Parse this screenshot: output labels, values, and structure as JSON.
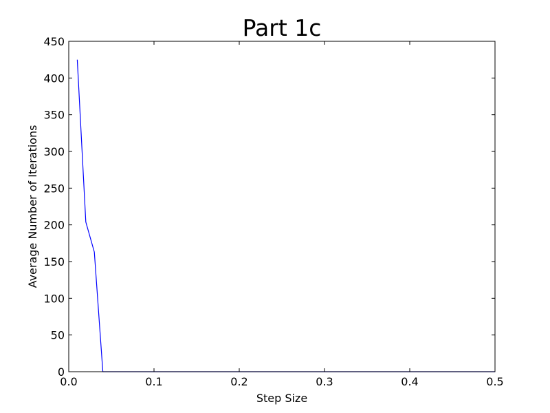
{
  "chart_data": {
    "type": "line",
    "title": "Part 1c",
    "xlabel": "Step Size",
    "ylabel": "Average Number of Iterations",
    "xlim": [
      0,
      0.5
    ],
    "ylim": [
      0,
      450
    ],
    "x_ticks": [
      0.0,
      0.1,
      0.2,
      0.3,
      0.4,
      0.5
    ],
    "x_tick_labels": [
      "0.0",
      "0.1",
      "0.2",
      "0.3",
      "0.4",
      "0.5"
    ],
    "y_ticks": [
      0,
      50,
      100,
      150,
      200,
      250,
      300,
      350,
      400,
      450
    ],
    "y_tick_labels": [
      "0",
      "50",
      "100",
      "150",
      "200",
      "250",
      "300",
      "350",
      "400",
      "450"
    ],
    "grid": false,
    "legend": "none",
    "series": [
      {
        "color": "#0000ff",
        "x": [
          0.01,
          0.02,
          0.03,
          0.04,
          0.05,
          0.06,
          0.07,
          0.08,
          0.09,
          0.1,
          0.15,
          0.2,
          0.25,
          0.3,
          0.35,
          0.4,
          0.45,
          0.5
        ],
        "y": [
          425,
          204,
          163,
          0,
          0,
          0,
          0,
          0,
          0,
          0,
          0,
          0,
          0,
          0,
          0,
          0,
          0,
          0
        ]
      }
    ]
  }
}
